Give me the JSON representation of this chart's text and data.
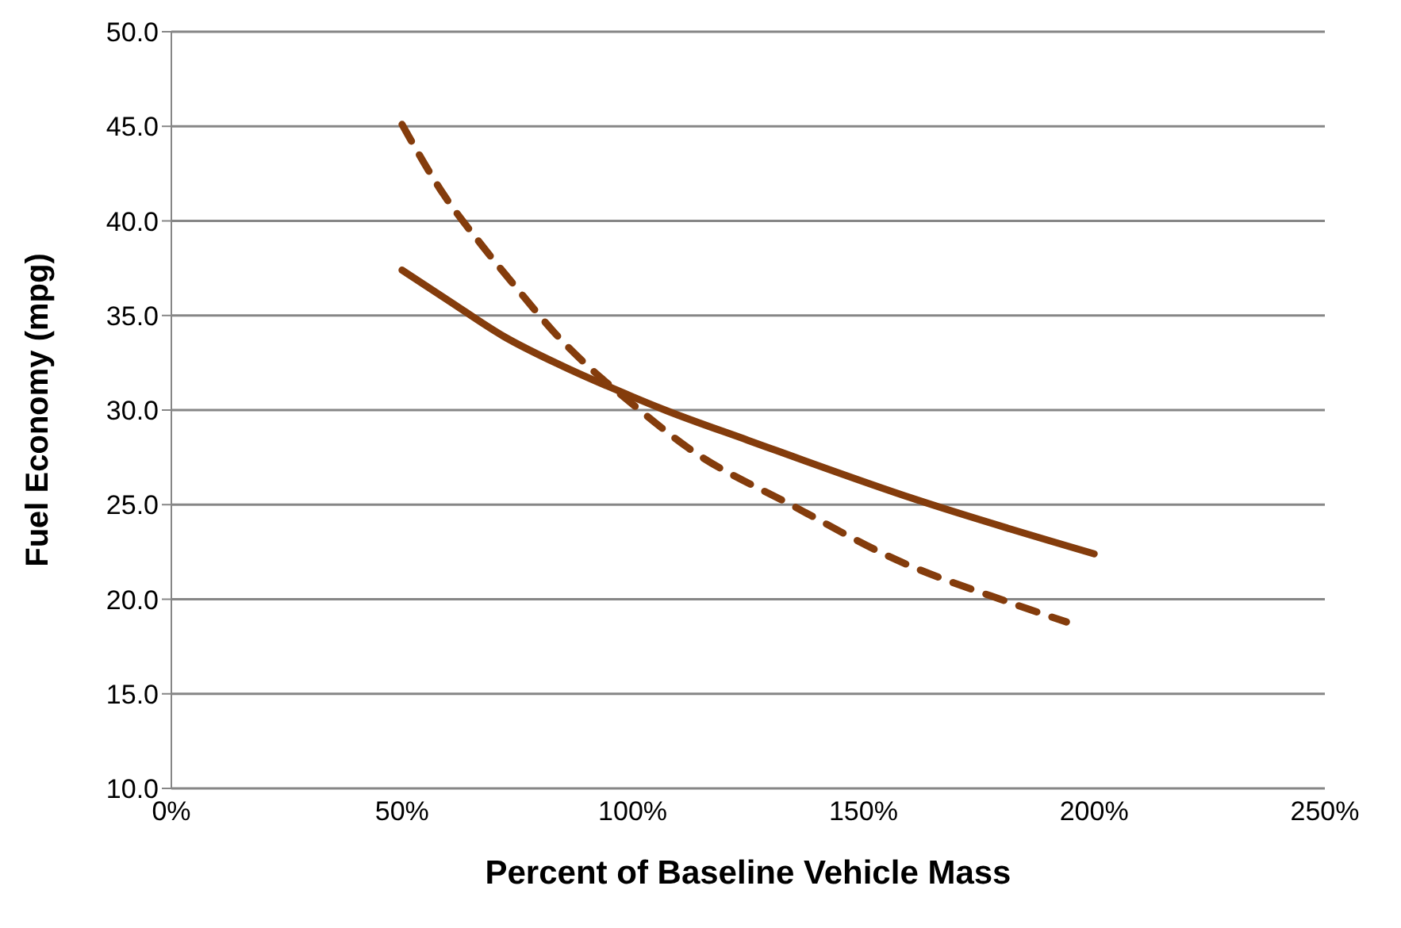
{
  "chart_data": {
    "type": "line",
    "xlabel": "Percent of Baseline Vehicle Mass",
    "ylabel": "Fuel Economy (mpg)",
    "xlim": [
      0,
      250
    ],
    "xticks": [
      {
        "value": 0,
        "label": "0%"
      },
      {
        "value": 50,
        "label": "50%"
      },
      {
        "value": 100,
        "label": "100%"
      },
      {
        "value": 150,
        "label": "150%"
      },
      {
        "value": 200,
        "label": "200%"
      },
      {
        "value": 250,
        "label": "250%"
      }
    ],
    "ylim": [
      10,
      50
    ],
    "yticks": [
      {
        "value": 10,
        "label": "10.0"
      },
      {
        "value": 15,
        "label": "15.0"
      },
      {
        "value": 20,
        "label": "20.0"
      },
      {
        "value": 25,
        "label": "25.0"
      },
      {
        "value": 30,
        "label": "30.0"
      },
      {
        "value": 35,
        "label": "35.0"
      },
      {
        "value": 40,
        "label": "40.0"
      },
      {
        "value": 45,
        "label": "45.0"
      },
      {
        "value": 50,
        "label": "50.0"
      }
    ],
    "grid": "y",
    "marker": "none",
    "series": [
      {
        "color": "#843c0c",
        "line_style": "solid",
        "x": [
          50,
          60,
          72,
          85,
          100,
          107,
          125,
          161,
          200
        ],
        "values": [
          37.4,
          35.8,
          33.9,
          32.3,
          30.7,
          30.0,
          28.4,
          25.3,
          22.4
        ]
      },
      {
        "color": "#843c0c",
        "line_style": "dashed",
        "x": [
          50,
          59,
          67,
          75,
          83,
          102,
          112,
          135,
          157,
          182,
          194
        ],
        "values": [
          45.1,
          41.4,
          38.8,
          36.4,
          34.1,
          29.9,
          28.0,
          24.9,
          22.1,
          19.8,
          18.8
        ]
      }
    ]
  }
}
